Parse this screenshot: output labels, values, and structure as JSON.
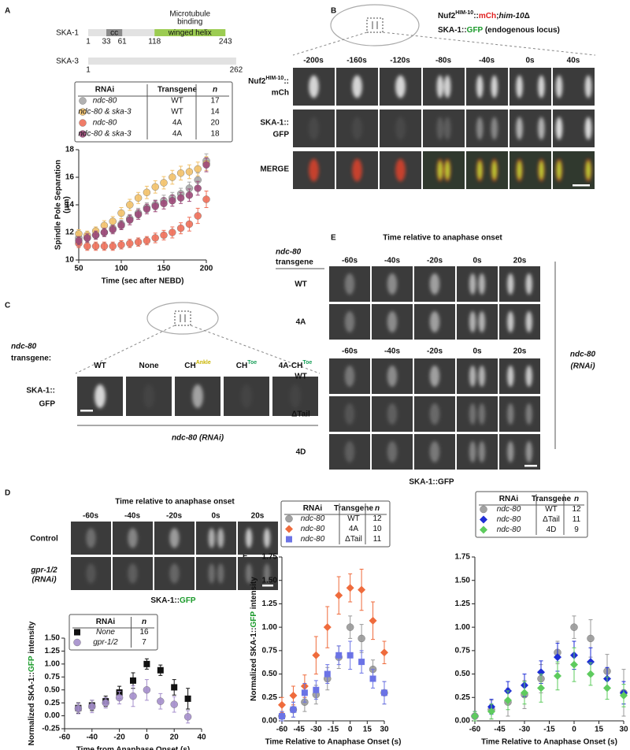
{
  "panel_labels": [
    "A",
    "B",
    "C",
    "D",
    "E",
    "F"
  ],
  "protein": {
    "domain_title": [
      "Microtubule",
      "binding"
    ],
    "ska1": {
      "name": "SKA-1",
      "cc": "cc",
      "domain": "winged helix",
      "positions": [
        1,
        33,
        61,
        118,
        243
      ]
    },
    "ska3": {
      "name": "SKA-3",
      "positions": [
        1,
        262
      ]
    }
  },
  "panel_b": {
    "title": [
      "Nuf2",
      "HIM-10",
      "::",
      "mCh",
      ";",
      "him-10",
      "Δ"
    ],
    "subtitle": [
      "SKA-1::",
      "GFP",
      " (endogenous locus)"
    ],
    "times": [
      "-200s",
      "-160s",
      "-120s",
      "-80s",
      "-40s",
      "0s",
      "40s"
    ],
    "row1": [
      "Nuf2",
      "HIM-10",
      "::",
      "mCh"
    ],
    "row2": [
      "SKA-1::",
      "GFP"
    ],
    "row3": "MERGE"
  },
  "panel_c": {
    "transgene_label": [
      "ndc-80",
      "transgene:"
    ],
    "columns": [
      [
        "WT"
      ],
      [
        "None"
      ],
      [
        "CH",
        "Ankle"
      ],
      [
        "CH",
        "Toe"
      ],
      [
        "4A-CH",
        "Toe"
      ]
    ],
    "row_label": [
      "SKA-1::",
      "GFP"
    ],
    "footer": "ndc-80 (RNAi)"
  },
  "panel_d": {
    "header": "Time relative to anaphase onset",
    "times": [
      "-60s",
      "-40s",
      "-20s",
      "0s",
      "20s"
    ],
    "rows": [
      [
        "Control"
      ],
      [
        "gpr-1/2",
        "(RNAi)"
      ]
    ],
    "footer": [
      "SKA-1::",
      "GFP"
    ]
  },
  "panel_e": {
    "header": "Time relative to anaphase onset",
    "transgene_label": [
      "ndc-80",
      "transgene"
    ],
    "times_top": [
      "-60s",
      "-40s",
      "-20s",
      "0s",
      "20s"
    ],
    "rows_top": [
      "WT",
      "4A"
    ],
    "times_bottom": [
      "-60s",
      "-40s",
      "-20s",
      "0s",
      "20s"
    ],
    "rows_bottom": [
      "WT",
      "ΔTail",
      "4D"
    ],
    "side_label": [
      "ndc-80",
      "(RNAi)"
    ],
    "footer": "SKA-1::GFP"
  },
  "chart_data": [
    {
      "type": "scatter",
      "xlabel": "Time (sec after NEBD)",
      "ylabel": [
        "Spindle Pole Separation",
        "(μm)"
      ],
      "legend_columns": [
        "RNAi",
        "Transgene",
        "n"
      ],
      "xlim": [
        50,
        200
      ],
      "xticks": [
        50,
        100,
        150,
        200
      ],
      "ylim": [
        10,
        18
      ],
      "yticks": [
        10,
        12,
        14,
        16,
        18
      ],
      "x": [
        50,
        60,
        70,
        80,
        90,
        100,
        110,
        120,
        130,
        140,
        150,
        160,
        170,
        180,
        190,
        200
      ],
      "series": [
        {
          "rnai": "ndc-80",
          "transgene": "WT",
          "n": 17,
          "color": "#a9a9a9",
          "marker": "circle",
          "values": [
            11.6,
            11.6,
            11.8,
            12.0,
            12.3,
            12.6,
            13.0,
            13.4,
            13.8,
            14.0,
            14.3,
            14.5,
            14.8,
            15.2,
            15.8,
            17.2
          ],
          "errors": [
            0.3,
            0.3,
            0.3,
            0.3,
            0.3,
            0.3,
            0.3,
            0.35,
            0.35,
            0.35,
            0.4,
            0.4,
            0.4,
            0.45,
            0.5,
            0.5
          ]
        },
        {
          "rnai": "ndc-80 & ska-3",
          "transgene": "WT",
          "n": 14,
          "color": "#f2c26b",
          "marker": "circle",
          "values": [
            11.9,
            11.8,
            12.1,
            12.5,
            12.8,
            13.4,
            14.0,
            14.5,
            14.9,
            15.3,
            15.6,
            16.0,
            16.3,
            16.4,
            16.6,
            17.0
          ],
          "errors": [
            0.3,
            0.3,
            0.3,
            0.35,
            0.35,
            0.4,
            0.4,
            0.4,
            0.45,
            0.45,
            0.45,
            0.5,
            0.5,
            0.5,
            0.5,
            0.5
          ]
        },
        {
          "rnai": "ndc-80",
          "transgene": "4A",
          "n": 20,
          "color": "#ef7059",
          "marker": "circle",
          "values": [
            11.2,
            11.0,
            11.0,
            11.0,
            11.0,
            11.1,
            11.2,
            11.3,
            11.4,
            11.6,
            11.8,
            12.0,
            12.3,
            12.6,
            13.2,
            14.4
          ],
          "errors": [
            0.3,
            0.3,
            0.3,
            0.3,
            0.3,
            0.3,
            0.3,
            0.3,
            0.3,
            0.35,
            0.35,
            0.4,
            0.4,
            0.5,
            0.55,
            0.6
          ]
        },
        {
          "rnai": "ndc-80 & ska-3",
          "transgene": "4A",
          "n": 18,
          "color": "#9e4a7a",
          "marker": "circle",
          "values": [
            11.4,
            11.6,
            11.8,
            12.0,
            12.2,
            12.5,
            12.9,
            13.3,
            13.7,
            13.9,
            14.1,
            14.3,
            14.5,
            14.7,
            15.2,
            16.9
          ],
          "errors": [
            0.3,
            0.3,
            0.3,
            0.3,
            0.3,
            0.3,
            0.35,
            0.35,
            0.35,
            0.4,
            0.4,
            0.4,
            0.4,
            0.45,
            0.5,
            0.5
          ]
        }
      ]
    },
    {
      "type": "scatter",
      "xlabel": "Time from Anaphase Onset (s)",
      "ylabel": [
        "Normalized SKA-1::",
        "GFP",
        " intensity"
      ],
      "legend_columns": [
        "RNAi",
        "n"
      ],
      "xlim": [
        -60,
        40
      ],
      "xticks": [
        -60,
        -40,
        -20,
        0,
        20,
        40
      ],
      "ylim": [
        -0.25,
        1.5
      ],
      "yticks": [
        {
          "value": -0.25,
          "label": "-0.25"
        },
        {
          "value": 0,
          "label": "0.00"
        },
        {
          "value": 0.25,
          "label": "0.25"
        },
        {
          "value": 0.5,
          "label": "0.50"
        },
        {
          "value": 0.75,
          "label": "0.75"
        },
        {
          "value": 1,
          "label": "1.00"
        },
        {
          "value": 1.25,
          "label": "1.25"
        },
        {
          "value": 1.5,
          "label": "1.50"
        }
      ],
      "x": [
        -50,
        -40,
        -30,
        -20,
        -10,
        0,
        10,
        20,
        30
      ],
      "series": [
        {
          "rnai": "None",
          "n": 16,
          "color": "#111111",
          "marker": "square",
          "values": [
            0.15,
            0.2,
            0.28,
            0.45,
            0.68,
            1.0,
            0.88,
            0.55,
            0.33
          ],
          "errors": [
            0.1,
            0.1,
            0.1,
            0.12,
            0.15,
            0.1,
            0.1,
            0.15,
            0.2
          ]
        },
        {
          "rnai": "gpr-1/2",
          "n": 7,
          "color": "#a58fcc",
          "marker": "circle",
          "values": [
            0.14,
            0.18,
            0.25,
            0.35,
            0.38,
            0.5,
            0.28,
            0.22,
            -0.02
          ],
          "errors": [
            0.1,
            0.12,
            0.1,
            0.12,
            0.2,
            0.2,
            0.15,
            0.15,
            0.12
          ]
        }
      ]
    },
    {
      "type": "scatter",
      "xlabel": "Time Relative to Anaphase Onset (s)",
      "ylabel": [
        "Normalized SKA-1::",
        "GFP",
        " intensity"
      ],
      "legend_columns": [
        "RNAi",
        "Transgene",
        "n"
      ],
      "xlim": [
        -60,
        30
      ],
      "xticks": [
        -60,
        -45,
        -30,
        -15,
        0,
        15,
        30
      ],
      "ylim": [
        0,
        1.75
      ],
      "yticks": [
        {
          "value": 0,
          "label": "0.00"
        },
        {
          "value": 0.25,
          "label": "0.25"
        },
        {
          "value": 0.5,
          "label": "0.50"
        },
        {
          "value": 0.75,
          "label": "0.75"
        },
        {
          "value": 1,
          "label": "1.00"
        },
        {
          "value": 1.25,
          "label": "1.25"
        },
        {
          "value": 1.5,
          "label": "1.50"
        },
        {
          "value": 1.75,
          "label": "1.75"
        }
      ],
      "x": [
        -60,
        -50,
        -40,
        -30,
        -20,
        -10,
        0,
        10,
        20,
        30
      ],
      "series": [
        {
          "rnai": "ndc-80",
          "transgene": "WT",
          "n": 12,
          "color": "#999999",
          "marker": "circle",
          "values": [
            0.05,
            0.12,
            0.2,
            0.28,
            0.45,
            0.68,
            1.0,
            0.88,
            0.55,
            0.3
          ],
          "errors": [
            0.05,
            0.08,
            0.1,
            0.1,
            0.12,
            0.12,
            0.12,
            0.15,
            0.1,
            0.12
          ]
        },
        {
          "rnai": "ndc-80",
          "transgene": "4A",
          "n": 10,
          "color": "#ef6b3c",
          "marker": "diamond",
          "values": [
            0.17,
            0.27,
            0.37,
            0.7,
            1.0,
            1.34,
            1.42,
            1.4,
            1.07,
            0.73
          ],
          "errors": [
            0.08,
            0.1,
            0.12,
            0.2,
            0.22,
            0.2,
            0.15,
            0.22,
            0.2,
            0.12
          ]
        },
        {
          "rnai": "ndc-80",
          "transgene": "ΔTail",
          "n": 11,
          "color": "#6b73e6",
          "marker": "square",
          "values": [
            0.05,
            0.12,
            0.3,
            0.33,
            0.5,
            0.7,
            0.7,
            0.63,
            0.45,
            0.3
          ],
          "errors": [
            0.05,
            0.08,
            0.1,
            0.1,
            0.1,
            0.1,
            0.15,
            0.12,
            0.1,
            0.12
          ]
        }
      ]
    },
    {
      "type": "scatter",
      "xlabel": "Time Relative to Anaphase Onset (s)",
      "legend_columns": [
        "RNAi",
        "Transgene",
        "n"
      ],
      "xlim": [
        -60,
        30
      ],
      "xticks": [
        -60,
        -45,
        -30,
        -15,
        0,
        15,
        30
      ],
      "ylim": [
        0,
        1.75
      ],
      "yticks": [
        {
          "value": 0,
          "label": "0.00"
        },
        {
          "value": 0.25,
          "label": "0.25"
        },
        {
          "value": 0.5,
          "label": "0.50"
        },
        {
          "value": 0.75,
          "label": "0.75"
        },
        {
          "value": 1,
          "label": "1.00"
        },
        {
          "value": 1.25,
          "label": "1.25"
        },
        {
          "value": 1.5,
          "label": "1.50"
        },
        {
          "value": 1.75,
          "label": "1.75"
        }
      ],
      "x": [
        -60,
        -50,
        -40,
        -30,
        -20,
        -10,
        0,
        10,
        20,
        30
      ],
      "series": [
        {
          "rnai": "ndc-80",
          "transgene": "WT",
          "n": 12,
          "color": "#999999",
          "marker": "circle",
          "values": [
            0.05,
            0.12,
            0.2,
            0.28,
            0.45,
            0.73,
            1.0,
            0.88,
            0.53,
            0.3
          ],
          "errors": [
            0.05,
            0.1,
            0.15,
            0.15,
            0.15,
            0.12,
            0.12,
            0.2,
            0.18,
            0.25
          ]
        },
        {
          "rnai": "ndc-80",
          "transgene": "ΔTail",
          "n": 11,
          "color": "#1f2ed6",
          "marker": "diamond",
          "values": [
            0.05,
            0.15,
            0.32,
            0.38,
            0.52,
            0.68,
            0.7,
            0.63,
            0.45,
            0.3
          ],
          "errors": [
            0.05,
            0.08,
            0.1,
            0.12,
            0.12,
            0.15,
            0.15,
            0.15,
            0.12,
            0.12
          ]
        },
        {
          "rnai": "ndc-80",
          "transgene": "4D",
          "n": 9,
          "color": "#5ecb5e",
          "marker": "diamond",
          "values": [
            0.05,
            0.1,
            0.22,
            0.3,
            0.35,
            0.48,
            0.6,
            0.5,
            0.35,
            0.27
          ],
          "errors": [
            0.05,
            0.08,
            0.1,
            0.12,
            0.15,
            0.15,
            0.18,
            0.12,
            0.12,
            0.12
          ]
        }
      ]
    }
  ]
}
